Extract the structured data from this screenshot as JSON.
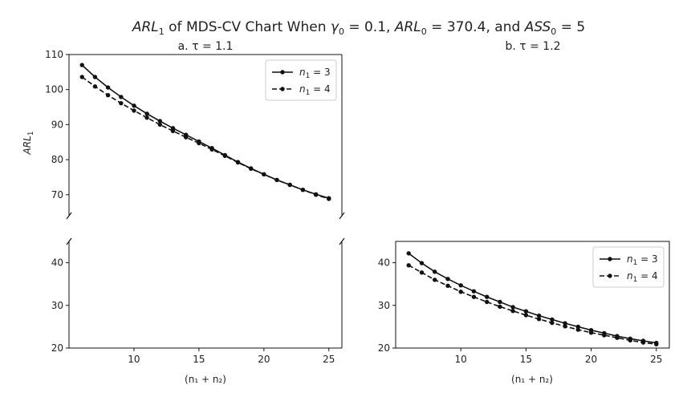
{
  "figure": {
    "title_parts": {
      "arl1_sym": "ARL",
      "arl1_sub": "1",
      "title_mid": " of MDS-CV Chart When ",
      "gamma_sym": "γ",
      "gamma_sub": "0",
      "gamma_val": " = 0.1, ",
      "arl0_sym": "ARL",
      "arl0_sub": "0",
      "arl0_val": " = 370.4, and ",
      "ass_sym": "ASS",
      "ass_sub": "0",
      "ass_val": " = 5"
    }
  },
  "chart_data": [
    {
      "type": "line",
      "subtitle": "a. τ = 1.1",
      "xlabel": "(n₁ + n₂)",
      "ylabel": "ARL₁",
      "broken_y_axis": true,
      "upper_ylim": [
        64,
        110
      ],
      "lower_ylim": [
        20,
        45
      ],
      "upper_yticks": [
        70,
        80,
        90,
        100,
        110
      ],
      "lower_yticks": [
        20,
        30,
        40
      ],
      "xlim": [
        5,
        26
      ],
      "xticks": [
        10,
        15,
        20,
        25
      ],
      "legend": "top-right (upper panel)",
      "x": [
        6,
        7,
        8,
        9,
        10,
        11,
        12,
        13,
        14,
        15,
        16,
        17,
        18,
        19,
        20,
        21,
        22,
        23,
        24,
        25
      ],
      "series": [
        {
          "name": "n1 = 3",
          "legend_sym": "n",
          "legend_sub": "1",
          "legend_val": " = 3",
          "style": "solid",
          "values": [
            107.0,
            103.6,
            100.6,
            97.9,
            95.4,
            93.1,
            91.0,
            89.0,
            87.1,
            85.2,
            83.3,
            81.3,
            79.3,
            77.5,
            75.8,
            74.2,
            72.8,
            71.4,
            70.1,
            69.0
          ]
        },
        {
          "name": "n1 = 4",
          "legend_sym": "n",
          "legend_sub": "1",
          "legend_val": " = 4",
          "style": "dashed",
          "values": [
            103.6,
            100.9,
            98.4,
            96.1,
            94.0,
            92.0,
            90.0,
            88.2,
            86.4,
            84.7,
            82.9,
            81.1,
            79.2,
            77.4,
            75.8,
            74.2,
            72.8,
            71.4,
            70.0,
            68.8
          ]
        }
      ],
      "line_color": "#111111"
    },
    {
      "type": "line",
      "subtitle": "b. τ = 1.2",
      "xlabel": "(n₁ + n₂)",
      "ylim": [
        20,
        45
      ],
      "yticks": [
        20,
        30,
        40
      ],
      "xlim": [
        5,
        26
      ],
      "xticks": [
        10,
        15,
        20,
        25
      ],
      "legend": "top-right",
      "x": [
        6,
        7,
        8,
        9,
        10,
        11,
        12,
        13,
        14,
        15,
        16,
        17,
        18,
        19,
        20,
        21,
        22,
        23,
        24,
        25
      ],
      "series": [
        {
          "name": "n1 = 3",
          "legend_sym": "n",
          "legend_sub": "1",
          "legend_val": " = 3",
          "style": "solid",
          "values": [
            42.2,
            39.9,
            37.9,
            36.2,
            34.7,
            33.3,
            32.0,
            30.8,
            29.6,
            28.6,
            27.6,
            26.7,
            25.8,
            25.0,
            24.2,
            23.5,
            22.8,
            22.2,
            21.7,
            21.2
          ]
        },
        {
          "name": "n1 = 4",
          "legend_sym": "n",
          "legend_sub": "1",
          "legend_val": " = 4",
          "style": "dashed",
          "values": [
            39.4,
            37.7,
            36.0,
            34.6,
            33.2,
            32.0,
            30.8,
            29.7,
            28.7,
            27.7,
            26.8,
            25.9,
            25.1,
            24.3,
            23.6,
            23.0,
            22.4,
            21.8,
            21.3,
            20.9
          ]
        }
      ],
      "line_color": "#111111"
    }
  ]
}
